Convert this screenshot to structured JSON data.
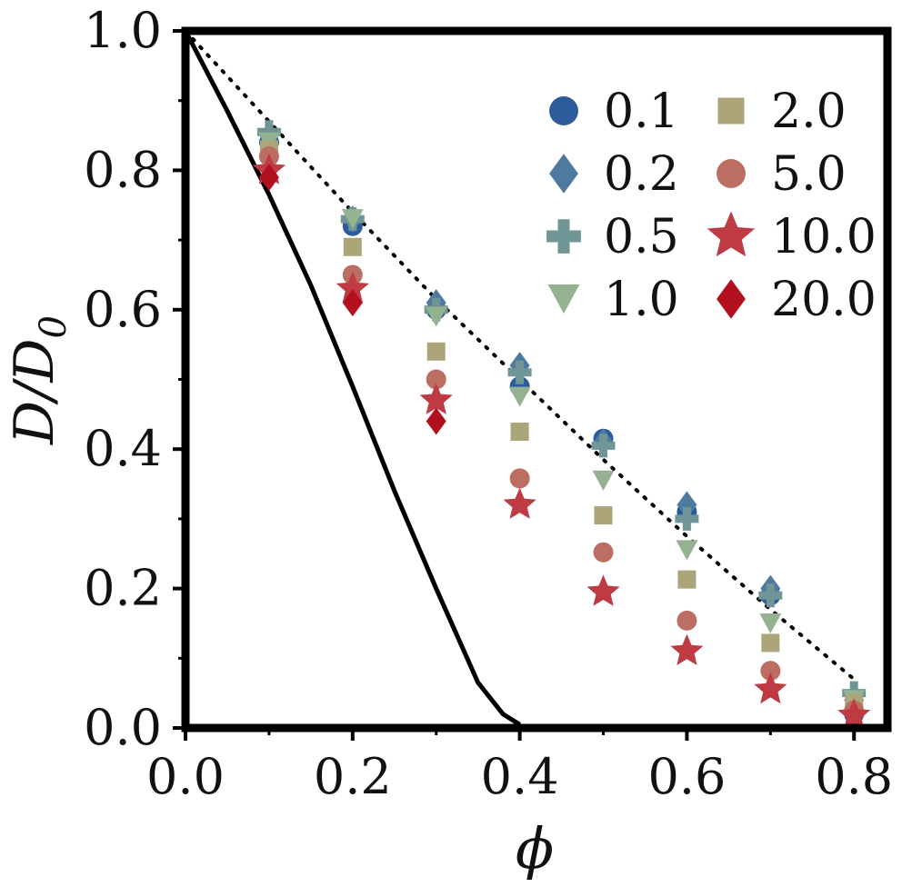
{
  "chart_data": {
    "type": "scatter",
    "xlabel": "ϕ",
    "ylabel": "D/D0",
    "ylabel_parts": {
      "main": "D/D",
      "sub": "0"
    },
    "xlim": [
      0.0,
      0.84
    ],
    "ylim": [
      0.0,
      1.0
    ],
    "x_ticks": [
      0.0,
      0.2,
      0.4,
      0.6,
      0.8
    ],
    "x_tick_labels": [
      "0.0",
      "0.2",
      "0.4",
      "0.6",
      "0.8"
    ],
    "y_ticks": [
      0.0,
      0.2,
      0.4,
      0.6,
      0.8,
      1.0
    ],
    "y_tick_labels": [
      "0.0",
      "0.2",
      "0.4",
      "0.6",
      "0.8",
      "1.0"
    ],
    "grid": false,
    "legend_position": "top-right",
    "legend_columns": 2,
    "x": [
      0.1,
      0.2,
      0.3,
      0.4,
      0.5,
      0.6,
      0.7,
      0.8
    ],
    "series": [
      {
        "name": "0.1",
        "marker": "circle",
        "color": "#2d5c9c",
        "values": [
          0.84,
          0.72,
          0.6,
          0.49,
          0.415,
          0.31,
          0.19,
          0.02
        ]
      },
      {
        "name": "0.2",
        "marker": "diamond",
        "color": "#4f7aa0",
        "values": [
          0.85,
          0.73,
          0.61,
          0.52,
          0.41,
          0.32,
          0.2,
          0.04
        ]
      },
      {
        "name": "0.5",
        "marker": "plus",
        "color": "#6f9596",
        "values": [
          0.855,
          0.73,
          0.6,
          0.51,
          0.405,
          0.3,
          0.19,
          0.05
        ]
      },
      {
        "name": "1.0",
        "marker": "triangle-down",
        "color": "#94b290",
        "values": [
          0.84,
          0.73,
          0.59,
          0.475,
          0.355,
          0.255,
          0.15,
          0.04
        ]
      },
      {
        "name": "2.0",
        "marker": "square",
        "color": "#ada57a",
        "values": [
          0.83,
          0.69,
          0.54,
          0.425,
          0.305,
          0.213,
          0.122,
          0.035
        ]
      },
      {
        "name": "5.0",
        "marker": "circle",
        "color": "#bd6e62",
        "values": [
          0.82,
          0.65,
          0.5,
          0.358,
          0.252,
          0.154,
          0.082,
          0.025
        ]
      },
      {
        "name": "10.0",
        "marker": "star",
        "color": "#bf3b44",
        "values": [
          0.8,
          0.63,
          0.47,
          0.32,
          0.195,
          0.11,
          0.055,
          0.018
        ]
      },
      {
        "name": "20.0",
        "marker": "diamond",
        "color": "#b3101f",
        "values": [
          0.79,
          0.61,
          0.44,
          null,
          null,
          null,
          null,
          null
        ]
      }
    ],
    "reference_lines": [
      {
        "style": "solid",
        "color": "#000000",
        "x": [
          0.0,
          0.05,
          0.1,
          0.15,
          0.2,
          0.25,
          0.3,
          0.35,
          0.38,
          0.4
        ],
        "y": [
          1.0,
          0.885,
          0.765,
          0.635,
          0.49,
          0.34,
          0.2,
          0.065,
          0.02,
          0.005
        ]
      },
      {
        "style": "dotted",
        "color": "#000000",
        "x": [
          0.0,
          0.1,
          0.2,
          0.3,
          0.4,
          0.5,
          0.6,
          0.7,
          0.8
        ],
        "y": [
          1.0,
          0.87,
          0.74,
          0.615,
          0.5,
          0.385,
          0.275,
          0.17,
          0.07
        ]
      }
    ]
  }
}
